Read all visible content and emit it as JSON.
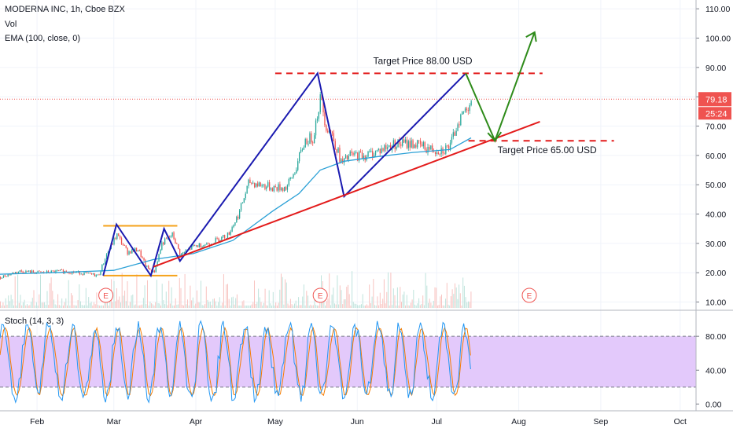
{
  "header": {
    "symbol_line": "MODERNA INC, 1h, Cboe BZX",
    "indicator_vol": "Vol",
    "indicator_ema": "EMA (100, close, 0)",
    "indicator_stoch": "Stoch (14, 3, 3)"
  },
  "price_badge": {
    "value": "79.18",
    "countdown": "25:24"
  },
  "annotations": {
    "target_high": "Target Price 88.00 USD",
    "target_low": "Target Price 65.00 USD",
    "earnings_marker": "E"
  },
  "colors": {
    "price_line": "#ef5350",
    "ema": "#2aa0d6",
    "channel": "#1a1ab0",
    "trendline": "#e31b1b",
    "box": "#f5a21b",
    "projection": "#2e8b1a",
    "stoch_band": "#e3c9fb",
    "stoch_k": "#2196f3",
    "stoch_d": "#f57c00"
  },
  "chart_data": [
    {
      "type": "line",
      "description_kind": "candlestick price chart with drawn pattern lines",
      "x_axis": {
        "ticks": [
          "Feb",
          "Mar",
          "Apr",
          "May",
          "Jun",
          "Jul",
          "Aug",
          "Sep",
          "Oct"
        ]
      },
      "y_axis": {
        "ticks": [
          "10.00",
          "20.00",
          "30.00",
          "40.00",
          "50.00",
          "60.00",
          "70.00",
          "80.00",
          "90.00",
          "100.00",
          "110.00"
        ],
        "range": [
          8,
          113
        ]
      },
      "last_price": 79.18,
      "series": [
        {
          "kind": "price",
          "points": [
            {
              "x": "2020-01-18",
              "y": 18.5
            },
            {
              "x": "2020-01-25",
              "y": 20.5
            },
            {
              "x": "2020-02-03",
              "y": 20
            },
            {
              "x": "2020-02-10",
              "y": 20.5
            },
            {
              "x": "2020-02-17",
              "y": 20
            },
            {
              "x": "2020-02-24",
              "y": 19
            },
            {
              "x": "2020-02-27",
              "y": 26
            },
            {
              "x": "2020-03-02",
              "y": 33
            },
            {
              "x": "2020-03-06",
              "y": 27
            },
            {
              "x": "2020-03-10",
              "y": 28
            },
            {
              "x": "2020-03-13",
              "y": 22
            },
            {
              "x": "2020-03-16",
              "y": 20
            },
            {
              "x": "2020-03-19",
              "y": 30
            },
            {
              "x": "2020-03-23",
              "y": 33
            },
            {
              "x": "2020-03-26",
              "y": 26
            },
            {
              "x": "2020-03-31",
              "y": 29
            },
            {
              "x": "2020-04-06",
              "y": 30
            },
            {
              "x": "2020-04-13",
              "y": 33
            },
            {
              "x": "2020-04-17",
              "y": 40
            },
            {
              "x": "2020-04-21",
              "y": 51
            },
            {
              "x": "2020-04-25",
              "y": 50
            },
            {
              "x": "2020-04-30",
              "y": 49
            },
            {
              "x": "2020-05-05",
              "y": 49
            },
            {
              "x": "2020-05-08",
              "y": 54
            },
            {
              "x": "2020-05-12",
              "y": 65
            },
            {
              "x": "2020-05-15",
              "y": 66
            },
            {
              "x": "2020-05-18",
              "y": 80
            },
            {
              "x": "2020-05-20",
              "y": 70
            },
            {
              "x": "2020-05-22",
              "y": 68
            },
            {
              "x": "2020-05-26",
              "y": 57
            },
            {
              "x": "2020-05-29",
              "y": 60
            },
            {
              "x": "2020-06-04",
              "y": 60
            },
            {
              "x": "2020-06-10",
              "y": 62
            },
            {
              "x": "2020-06-15",
              "y": 64
            },
            {
              "x": "2020-06-22",
              "y": 64
            },
            {
              "x": "2020-06-29",
              "y": 62
            },
            {
              "x": "2020-07-03",
              "y": 62
            },
            {
              "x": "2020-07-06",
              "y": 63
            },
            {
              "x": "2020-07-09",
              "y": 72
            },
            {
              "x": "2020-07-12",
              "y": 76
            },
            {
              "x": "2020-07-14",
              "y": 79.18
            }
          ]
        },
        {
          "kind": "ema_100",
          "points": [
            {
              "x": "2020-01-18",
              "y": 19.5
            },
            {
              "x": "2020-02-10",
              "y": 20.1
            },
            {
              "x": "2020-03-01",
              "y": 20.8
            },
            {
              "x": "2020-03-16",
              "y": 24.5
            },
            {
              "x": "2020-03-31",
              "y": 26.5
            },
            {
              "x": "2020-04-15",
              "y": 31
            },
            {
              "x": "2020-04-30",
              "y": 41
            },
            {
              "x": "2020-05-10",
              "y": 47
            },
            {
              "x": "2020-05-18",
              "y": 55
            },
            {
              "x": "2020-05-27",
              "y": 58
            },
            {
              "x": "2020-06-08",
              "y": 59.5
            },
            {
              "x": "2020-06-22",
              "y": 61
            },
            {
              "x": "2020-07-06",
              "y": 62
            },
            {
              "x": "2020-07-14",
              "y": 66
            }
          ]
        }
      ],
      "drawings": {
        "target_high_level": 88,
        "target_low_level": 65,
        "box_range": [
          19,
          36
        ],
        "channel_path": [
          {
            "x": "2020-02-26",
            "y": 19
          },
          {
            "x": "2020-03-02",
            "y": 36.5
          },
          {
            "x": "2020-03-15",
            "y": 19
          },
          {
            "x": "2020-03-20",
            "y": 35
          },
          {
            "x": "2020-03-26",
            "y": 24
          },
          {
            "x": "2020-05-17",
            "y": 88
          },
          {
            "x": "2020-05-27",
            "y": 46
          },
          {
            "x": "2020-07-12",
            "y": 88
          }
        ],
        "trendline": [
          {
            "x": "2020-03-16",
            "y": 22
          },
          {
            "x": "2020-08-09",
            "y": 71.5
          }
        ],
        "projection_path": [
          {
            "x": "2020-07-12",
            "y": 88
          },
          {
            "x": "2020-07-23",
            "y": 65
          },
          {
            "x": "2020-08-07",
            "y": 102
          }
        ],
        "earnings_dates": [
          "2020-02-27",
          "2020-05-18",
          "2020-08-05"
        ]
      }
    },
    {
      "type": "line",
      "description_kind": "stochastic oscillator",
      "y_axis": {
        "ticks": [
          "0.00",
          "40.00",
          "80.00"
        ],
        "range": [
          -8,
          108
        ]
      },
      "band": [
        20,
        80
      ],
      "series_names": [
        "%K",
        "%D"
      ],
      "last_value": 68
    }
  ]
}
